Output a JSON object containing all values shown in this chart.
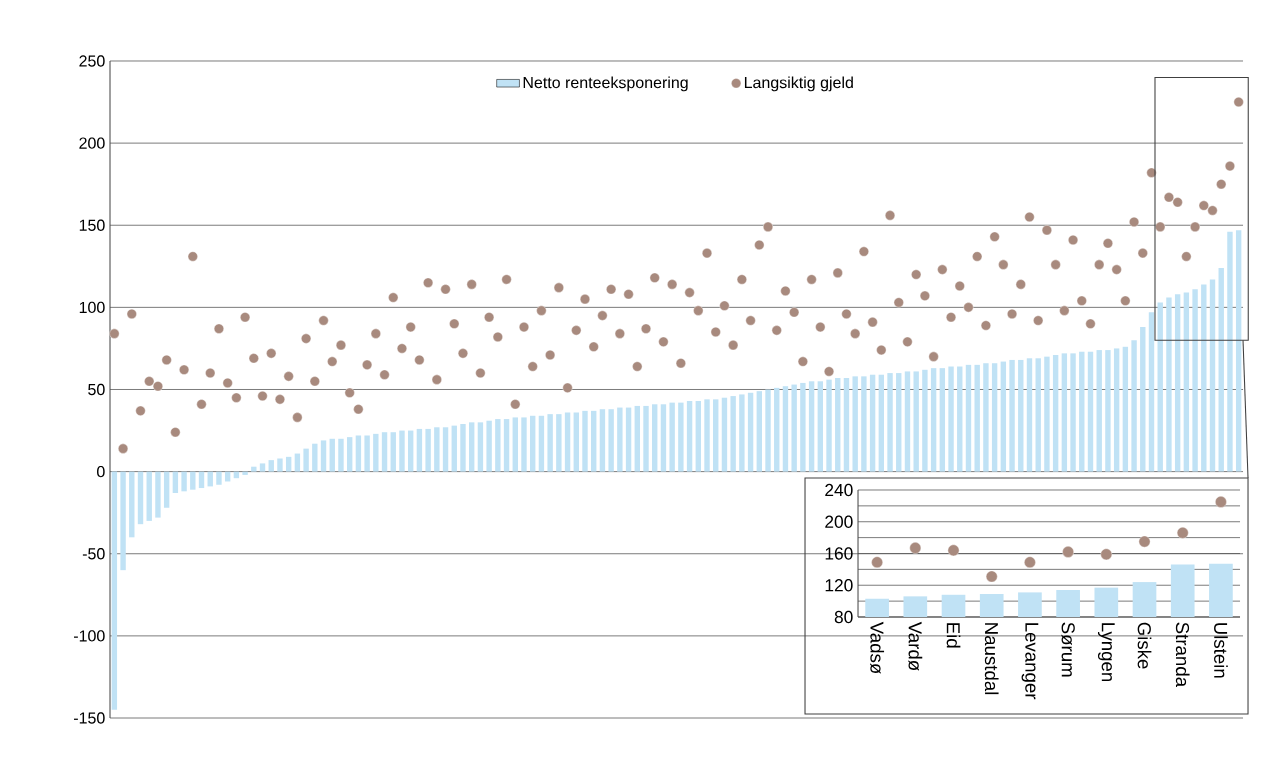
{
  "chart_data": [
    {
      "type": "bar",
      "categories": [
        null,
        null,
        null,
        null,
        null,
        null,
        null,
        null,
        null,
        null,
        null,
        null,
        null,
        null,
        null,
        null,
        null,
        null,
        null,
        null,
        null,
        null,
        null,
        null,
        null,
        null,
        null,
        null,
        null,
        null,
        null,
        null,
        null,
        null,
        null,
        null,
        null,
        null,
        null,
        null,
        null,
        null,
        null,
        null,
        null,
        null,
        null,
        null,
        null,
        null,
        null,
        null,
        null,
        null,
        null,
        null,
        null,
        null,
        null,
        null,
        null,
        null,
        null,
        null,
        null,
        null,
        null,
        null,
        null,
        null,
        null,
        null,
        null,
        null,
        null,
        null,
        null,
        null,
        null,
        null,
        null,
        null,
        null,
        null,
        null,
        null,
        null,
        null,
        null,
        null,
        null,
        null,
        null,
        null,
        null,
        null,
        null,
        null,
        null,
        null,
        null,
        null,
        null,
        null,
        null,
        null,
        null,
        null,
        null,
        null,
        null,
        null,
        null,
        null,
        null,
        null,
        null,
        null,
        null,
        null,
        null,
        null,
        null,
        null,
        null,
        null,
        null,
        null,
        null,
        null
      ],
      "series": [
        {
          "name": "Netto renteeksponering",
          "color": "#c0e2f5",
          "values": [
            -145,
            -60,
            -40,
            -32,
            -30,
            -28,
            -22,
            -13,
            -12,
            -11,
            -10,
            -9,
            -8,
            -6,
            -4,
            -2,
            3,
            5,
            7,
            8,
            9,
            11,
            14,
            17,
            19,
            20,
            20,
            21,
            22,
            22,
            23,
            24,
            24,
            25,
            25,
            26,
            26,
            27,
            27,
            28,
            29,
            30,
            30,
            31,
            32,
            32,
            33,
            33,
            34,
            34,
            35,
            35,
            36,
            36,
            37,
            37,
            38,
            38,
            39,
            39,
            40,
            40,
            41,
            41,
            42,
            42,
            43,
            43,
            44,
            44,
            45,
            46,
            47,
            48,
            49,
            50,
            51,
            52,
            53,
            54,
            55,
            55,
            56,
            57,
            57,
            58,
            58,
            59,
            59,
            60,
            60,
            61,
            61,
            62,
            63,
            63,
            64,
            64,
            65,
            65,
            66,
            66,
            67,
            68,
            68,
            69,
            69,
            70,
            71,
            72,
            72,
            73,
            73,
            74,
            74,
            75,
            76,
            80,
            88,
            97,
            103,
            106,
            108,
            109,
            111,
            114,
            117,
            124,
            146,
            147
          ]
        },
        {
          "name": "Langsiktig gjeld",
          "type": "scatter",
          "color": "#a88a7e",
          "values": [
            84,
            14,
            96,
            37,
            55,
            52,
            68,
            24,
            62,
            131,
            41,
            60,
            87,
            54,
            45,
            94,
            69,
            46,
            72,
            44,
            58,
            33,
            81,
            55,
            92,
            67,
            77,
            48,
            38,
            65,
            84,
            59,
            106,
            75,
            88,
            68,
            115,
            56,
            111,
            90,
            72,
            114,
            60,
            94,
            82,
            117,
            41,
            88,
            64,
            98,
            71,
            112,
            51,
            86,
            105,
            76,
            95,
            111,
            84,
            108,
            64,
            87,
            118,
            79,
            114,
            66,
            109,
            98,
            133,
            85,
            101,
            77,
            117,
            92,
            138,
            149,
            86,
            110,
            97,
            67,
            117,
            88,
            61,
            121,
            96,
            84,
            134,
            91,
            74,
            156,
            103,
            79,
            120,
            107,
            70,
            123,
            94,
            113,
            100,
            131,
            89,
            143,
            126,
            96,
            114,
            155,
            92,
            147,
            126,
            98,
            141,
            104,
            90,
            126,
            139,
            123,
            104,
            152,
            133,
            182,
            149,
            167,
            164,
            131,
            149,
            162,
            159,
            175,
            186,
            225
          ]
        }
      ],
      "ylim": [
        -150,
        250
      ],
      "yticks": [
        -150,
        -100,
        -50,
        0,
        50,
        100,
        150,
        200,
        250
      ],
      "grid": "y",
      "legend": "top",
      "tick_labels": "y",
      "marker": "circle"
    },
    {
      "type": "bar",
      "categories": [
        "Vadsø",
        "Vardø",
        "Eid",
        "Naustdal",
        "Levanger",
        "Sørum",
        "Lyngen",
        "Giske",
        "Stranda",
        "Ulstein"
      ],
      "series": [
        {
          "color": "#c0e2f5",
          "values": [
            103,
            106,
            108,
            109,
            111,
            114,
            117,
            124,
            146,
            147
          ]
        },
        {
          "type": "scatter",
          "color": "#a88a7e",
          "values": [
            149,
            167,
            164,
            131,
            149,
            162,
            159,
            175,
            186,
            225
          ]
        }
      ],
      "ylim": [
        80,
        240
      ],
      "yticks": [
        80,
        {
          "value": 100,
          "label": null
        },
        120,
        {
          "value": 140,
          "label": null
        },
        160,
        {
          "value": 180,
          "label": null
        },
        200,
        {
          "value": 220,
          "label": null
        },
        240
      ],
      "grid": "y",
      "marker": "circle"
    }
  ]
}
